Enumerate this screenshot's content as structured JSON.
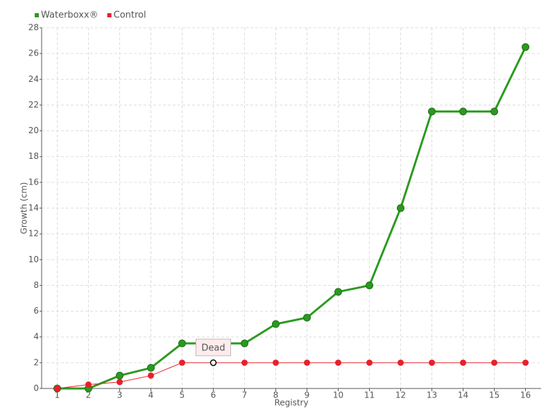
{
  "chart_data": {
    "type": "line",
    "categories": [
      "1",
      "2",
      "3",
      "4",
      "5",
      "6",
      "7",
      "8",
      "9",
      "10",
      "11",
      "12",
      "13",
      "14",
      "15",
      "16"
    ],
    "series": [
      {
        "name": "Waterboxx®",
        "color": "#2a9a1f",
        "values": [
          0,
          0,
          1,
          1.6,
          3.5,
          3.5,
          3.5,
          5,
          5.5,
          7.5,
          8,
          14,
          21.5,
          21.5,
          21.5,
          26.5
        ]
      },
      {
        "name": "Control",
        "color": "#e8202a",
        "values": [
          0,
          0.3,
          0.5,
          1,
          2,
          2,
          2,
          2,
          2,
          2,
          2,
          2,
          2,
          2,
          2,
          2
        ]
      }
    ],
    "annotations": [
      {
        "text": "Dead",
        "series": "Control",
        "x": "6"
      }
    ],
    "xlabel": "Registry",
    "ylabel": "Growth (cm)",
    "ylim": [
      0,
      28
    ],
    "yticks": [
      0,
      2,
      4,
      6,
      8,
      10,
      12,
      14,
      16,
      18,
      20,
      22,
      24,
      26,
      28
    ],
    "grid": true,
    "legend": "top-left"
  }
}
